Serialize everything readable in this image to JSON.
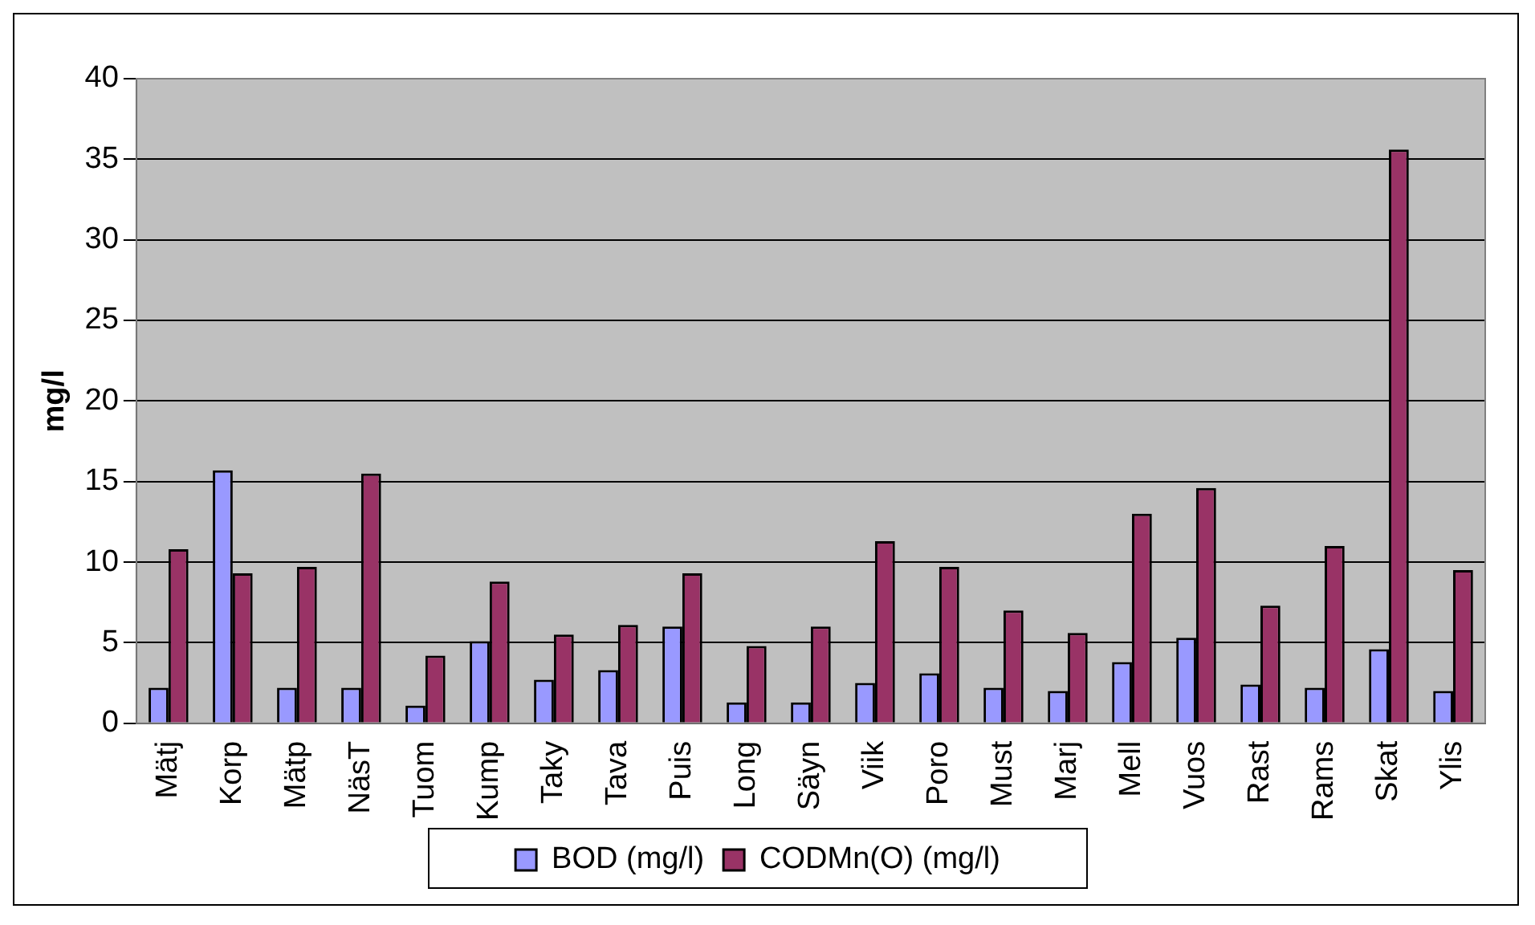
{
  "chart_data": {
    "type": "bar",
    "ylabel": "mg/l",
    "categories": [
      "Mätj",
      "Korp",
      "Mätp",
      "NäsT",
      "Tuom",
      "Kump",
      "Taky",
      "Tava",
      "Puis",
      "Long",
      "Säyn",
      "Viik",
      "Poro",
      "Must",
      "Marj",
      "Mell",
      "Vuos",
      "Rast",
      "Rams",
      "Skat",
      "Ylis"
    ],
    "series": [
      {
        "name": "BOD (mg/l)",
        "color": "#9999ff",
        "values": [
          2.2,
          15.7,
          2.2,
          2.2,
          1.1,
          5.1,
          2.7,
          3.3,
          6.0,
          1.3,
          1.3,
          2.5,
          3.1,
          2.2,
          2.0,
          3.8,
          5.3,
          2.4,
          2.2,
          4.6,
          2.0
        ]
      },
      {
        "name": "CODMn(O) (mg/l)",
        "color": "#993366",
        "values": [
          10.8,
          9.3,
          9.7,
          15.5,
          4.2,
          8.8,
          5.5,
          6.1,
          9.3,
          4.8,
          6.0,
          11.3,
          9.7,
          7.0,
          5.6,
          13.0,
          14.6,
          7.3,
          11.0,
          35.6,
          9.5
        ]
      }
    ],
    "ylim": [
      0,
      40
    ],
    "yticks": [
      0,
      5,
      10,
      15,
      20,
      25,
      30,
      35,
      40
    ],
    "grid": "y",
    "legend": "bottom"
  }
}
